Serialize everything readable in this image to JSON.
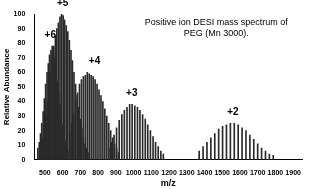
{
  "chart_data": {
    "type": "bar",
    "title": [
      "Positive ion DESI mass spectrum of",
      "PEG (Mn 3000)."
    ],
    "x_label": "m/z",
    "y_label": "Relative Abundance",
    "x": [
      460,
      468,
      475,
      482,
      490,
      497,
      504,
      512,
      519,
      526,
      534,
      541,
      548,
      556,
      563,
      570,
      578,
      585,
      592,
      600,
      607,
      614,
      622,
      629,
      479,
      488,
      497,
      506,
      514,
      523,
      532,
      541,
      550,
      559,
      567,
      576,
      585,
      594,
      603,
      611,
      620,
      629,
      638,
      647,
      655,
      664,
      673,
      682,
      691,
      699,
      708,
      717,
      726,
      735,
      743,
      640,
      651,
      662,
      673,
      684,
      695,
      706,
      717,
      728,
      739,
      750,
      761,
      772,
      783,
      794,
      805,
      816,
      827,
      838,
      849,
      860,
      871,
      882,
      893,
      904,
      915,
      860,
      875,
      890,
      904,
      919,
      934,
      948,
      963,
      978,
      992,
      1007,
      1022,
      1036,
      1051,
      1066,
      1080,
      1095,
      1110,
      1124,
      1139,
      1154,
      1168,
      1370,
      1392,
      1414,
      1436,
      1458,
      1480,
      1502,
      1524,
      1546,
      1568,
      1590,
      1612,
      1634,
      1656,
      1678,
      1700,
      1722,
      1744,
      1766,
      1788
    ],
    "values": [
      8,
      12,
      18,
      25,
      33,
      42,
      52,
      60,
      66,
      72,
      75,
      78,
      76,
      70,
      62,
      54,
      46,
      38,
      30,
      24,
      18,
      13,
      9,
      6,
      10,
      15,
      22,
      30,
      40,
      50,
      60,
      70,
      78,
      85,
      90,
      94,
      98,
      100,
      99,
      96,
      92,
      88,
      82,
      75,
      68,
      60,
      52,
      44,
      36,
      28,
      22,
      16,
      11,
      8,
      5,
      18,
      25,
      32,
      40,
      46,
      52,
      55,
      57,
      58,
      60,
      59,
      58,
      57,
      55,
      52,
      48,
      44,
      40,
      35,
      30,
      25,
      20,
      15,
      11,
      8,
      5,
      8,
      12,
      17,
      22,
      27,
      31,
      34,
      36,
      38,
      38,
      37,
      36,
      34,
      31,
      28,
      24,
      20,
      16,
      12,
      9,
      6,
      4,
      6,
      9,
      12,
      15,
      18,
      21,
      23,
      24,
      25,
      25,
      24,
      22,
      20,
      17,
      14,
      11,
      8,
      6,
      4,
      3
    ],
    "color": "#2a2a2a",
    "xlim": [
      440,
      1950
    ],
    "xticks": [
      500,
      600,
      700,
      800,
      900,
      1000,
      1100,
      1200,
      1300,
      1400,
      1500,
      1600,
      1700,
      1800,
      1900
    ],
    "ylim": [
      0,
      100
    ],
    "yticks": [
      0,
      10,
      20,
      30,
      40,
      50,
      60,
      70,
      80,
      90,
      100
    ],
    "grid": false,
    "annotations": [
      {
        "text": "+6",
        "x": 530,
        "y": 82
      },
      {
        "text": "+5",
        "x": 600,
        "y": 104
      },
      {
        "text": "+4",
        "x": 780,
        "y": 64
      },
      {
        "text": "+3",
        "x": 990,
        "y": 42
      },
      {
        "text": "+2",
        "x": 1560,
        "y": 29
      }
    ]
  }
}
